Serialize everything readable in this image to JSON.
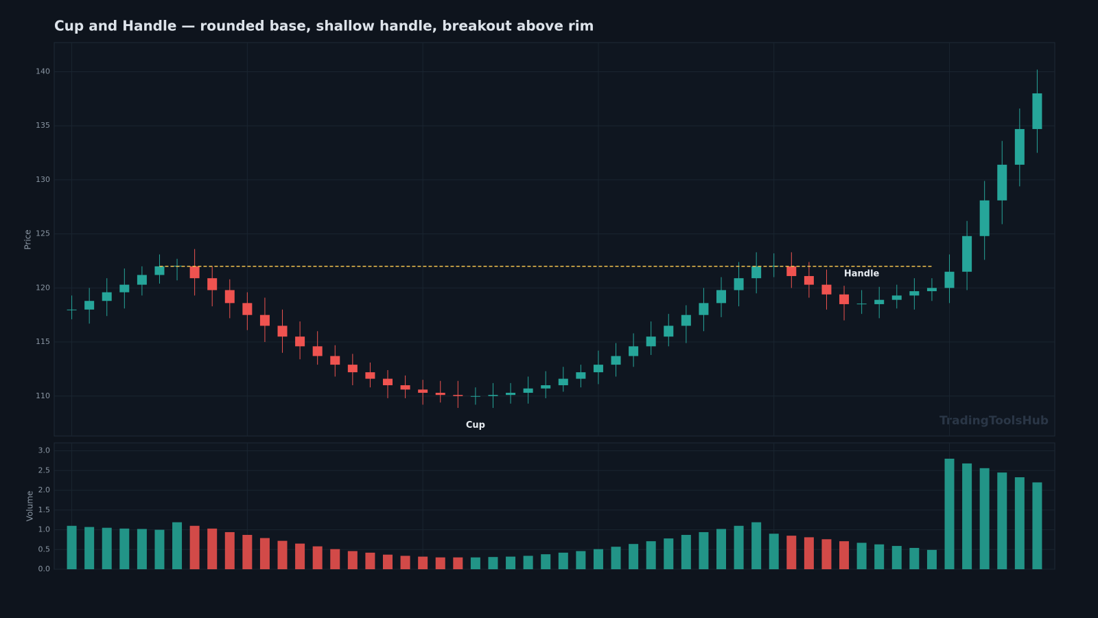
{
  "chart_data": [
    {
      "type": "candlestick",
      "title": "Cup and Handle — rounded base, shallow handle, breakout above rim",
      "ylabel": "Price",
      "up_color": "#26a69a",
      "down_color": "#ef5350",
      "open": [
        118.0,
        118.0,
        118.8,
        119.6,
        120.3,
        121.2,
        122.0,
        122.0,
        120.9,
        119.8,
        118.6,
        117.5,
        116.5,
        115.5,
        114.6,
        113.7,
        112.9,
        112.2,
        111.6,
        111.0,
        110.6,
        110.3,
        110.1,
        110.0,
        110.0,
        110.1,
        110.3,
        110.7,
        111.0,
        111.6,
        112.2,
        112.9,
        113.7,
        114.6,
        115.5,
        116.5,
        117.5,
        118.6,
        119.8,
        120.9,
        122.0,
        122.0,
        121.1,
        120.3,
        119.4,
        118.5,
        118.5,
        118.9,
        119.3,
        119.7,
        120.0,
        121.5,
        124.8,
        128.1,
        131.4,
        134.7
      ],
      "high": [
        119.3,
        120.0,
        120.9,
        121.8,
        122.0,
        123.1,
        122.7,
        123.6,
        122.0,
        120.8,
        119.6,
        119.1,
        118.0,
        116.9,
        116.0,
        114.7,
        113.9,
        113.1,
        112.4,
        111.9,
        111.5,
        111.4,
        111.4,
        110.8,
        111.2,
        111.2,
        111.8,
        112.3,
        112.7,
        112.9,
        114.2,
        114.9,
        115.8,
        116.9,
        117.6,
        118.4,
        120.0,
        121.0,
        122.4,
        123.3,
        123.2,
        123.3,
        122.4,
        121.7,
        120.2,
        119.8,
        120.1,
        120.3,
        120.9,
        120.9,
        123.1,
        126.2,
        129.9,
        133.6,
        136.6,
        140.2
      ],
      "low": [
        117.1,
        116.7,
        117.4,
        118.1,
        119.3,
        120.4,
        120.7,
        119.3,
        118.3,
        117.2,
        116.1,
        115.0,
        114.0,
        113.4,
        112.9,
        111.8,
        111.0,
        110.8,
        109.8,
        109.8,
        109.2,
        109.4,
        108.9,
        109.2,
        108.9,
        109.3,
        109.3,
        109.8,
        110.4,
        110.8,
        111.1,
        111.8,
        112.7,
        113.8,
        114.6,
        114.9,
        116.0,
        117.3,
        118.3,
        119.5,
        121.0,
        120.0,
        119.1,
        118.0,
        117.0,
        117.6,
        117.2,
        118.1,
        118.0,
        118.8,
        118.6,
        119.8,
        122.6,
        125.9,
        129.4,
        132.5
      ],
      "close": [
        118.0,
        118.8,
        119.6,
        120.3,
        121.2,
        122.0,
        122.05,
        120.9,
        119.8,
        118.6,
        117.5,
        116.5,
        115.5,
        114.6,
        113.7,
        112.9,
        112.2,
        111.6,
        111.0,
        110.6,
        110.3,
        110.1,
        110.0,
        110.0,
        110.1,
        110.3,
        110.7,
        111.0,
        111.6,
        112.2,
        112.9,
        113.7,
        114.6,
        115.5,
        116.5,
        117.5,
        118.6,
        119.8,
        120.9,
        122.0,
        122.05,
        121.1,
        120.3,
        119.4,
        118.5,
        118.55,
        118.9,
        119.3,
        119.7,
        120.0,
        121.5,
        124.8,
        128.1,
        131.4,
        134.7,
        138.0
      ],
      "xlim": [
        -1,
        56
      ],
      "ylim": [
        106.3,
        142.7
      ],
      "yticks": [
        110,
        115,
        120,
        125,
        130,
        135,
        140
      ],
      "grid": true,
      "rim": {
        "value": 122,
        "start": 5,
        "end": 49,
        "color": "#f2c14e"
      },
      "annotations": [
        {
          "text": "Cup",
          "x": 23,
          "y": 107.3
        },
        {
          "text": "Handle",
          "x": 45,
          "y": 121.3
        }
      ],
      "watermark": "TradingToolsHub"
    },
    {
      "type": "volume",
      "ylabel": "Volume",
      "up_color": "#229487",
      "down_color": "#d24a48",
      "values": [
        1.1,
        1.07,
        1.05,
        1.03,
        1.02,
        1.0,
        1.19,
        1.1,
        1.03,
        0.94,
        0.87,
        0.79,
        0.72,
        0.65,
        0.58,
        0.51,
        0.46,
        0.42,
        0.37,
        0.34,
        0.32,
        0.3,
        0.3,
        0.3,
        0.31,
        0.32,
        0.34,
        0.38,
        0.42,
        0.46,
        0.51,
        0.57,
        0.64,
        0.71,
        0.78,
        0.87,
        0.94,
        1.02,
        1.1,
        1.19,
        0.9,
        0.85,
        0.81,
        0.76,
        0.71,
        0.67,
        0.63,
        0.59,
        0.54,
        0.49,
        2.8,
        2.68,
        2.56,
        2.45,
        2.33,
        2.2
      ],
      "xlim": [
        -1,
        56
      ],
      "ylim": [
        0,
        3.2
      ],
      "yticks": [
        {
          "value": 0,
          "label": "0.0"
        },
        0.5,
        {
          "value": 1,
          "label": "1.0"
        },
        1.5,
        {
          "value": 2,
          "label": "2.0"
        },
        2.5,
        {
          "value": 3,
          "label": "3.0"
        }
      ],
      "grid": true
    }
  ]
}
